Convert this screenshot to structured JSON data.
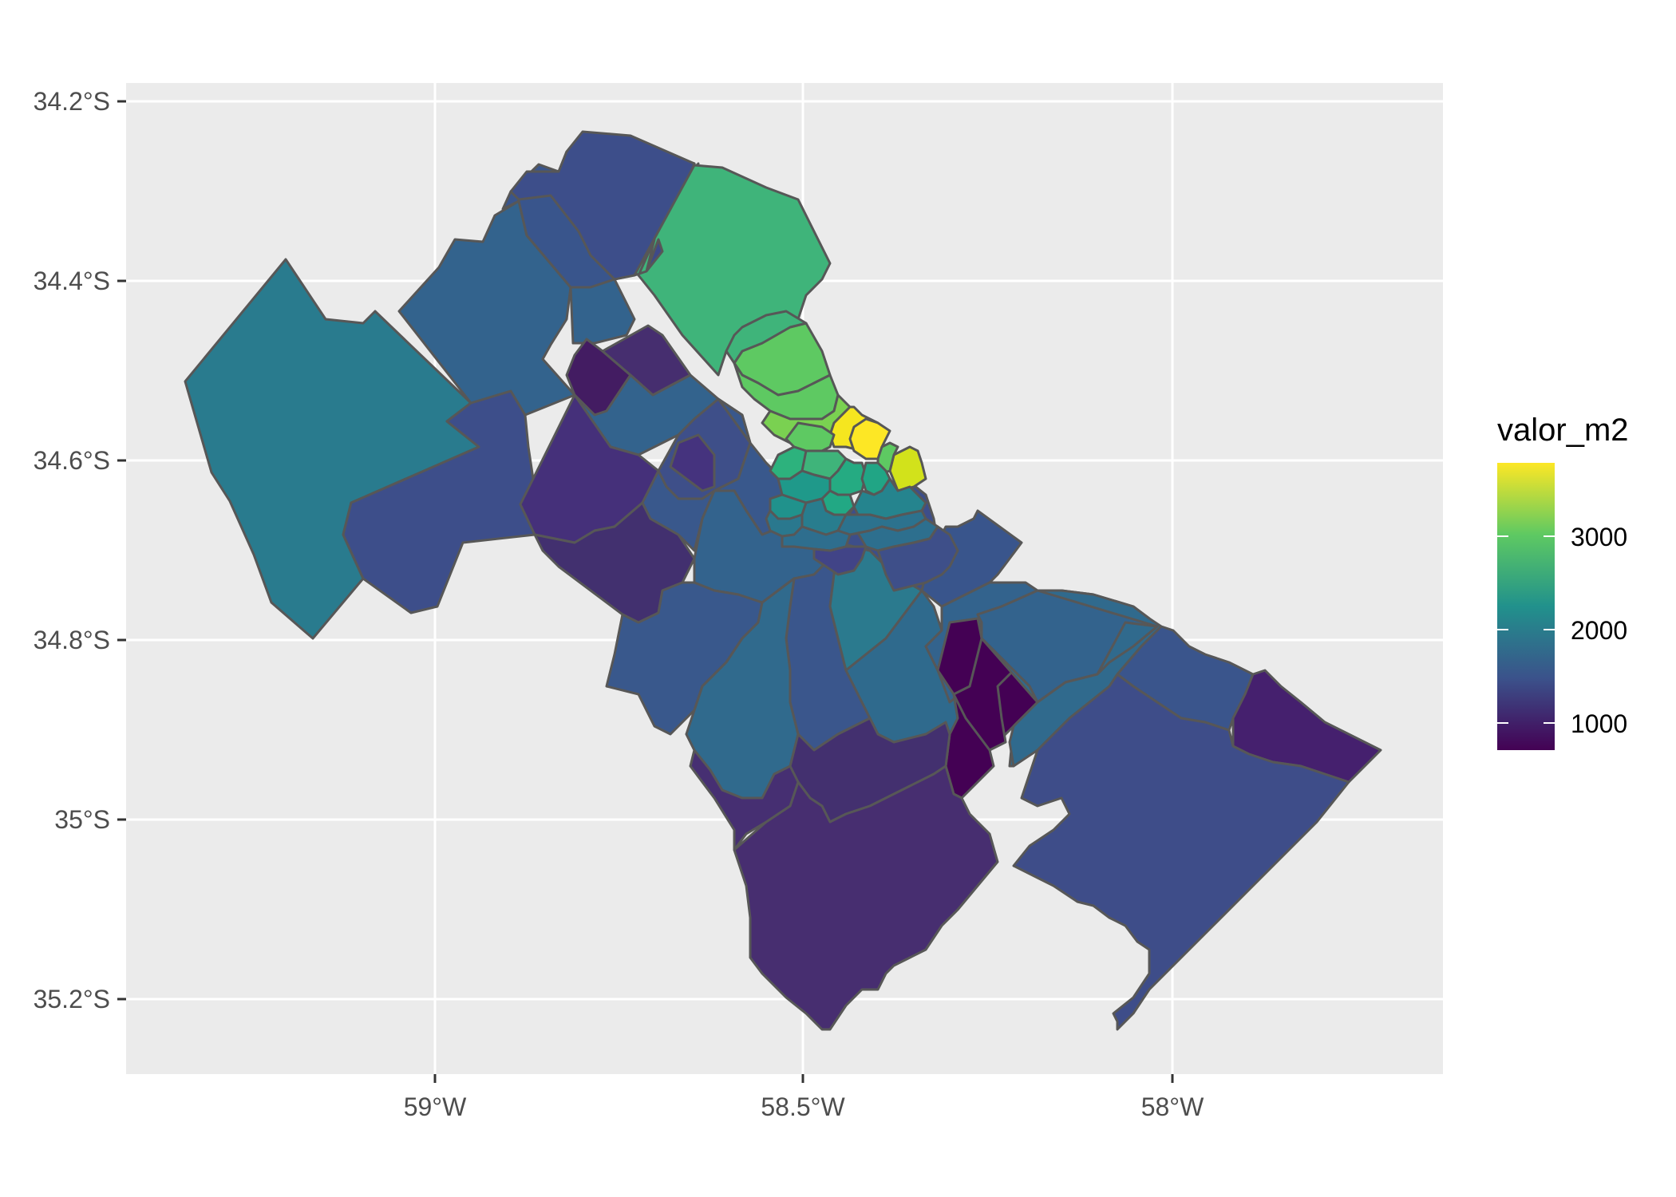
{
  "map": {
    "x_axis": {
      "ticks": [
        "59°W",
        "58.5°W",
        "58°W"
      ]
    },
    "y_axis": {
      "ticks": [
        "34.2°S",
        "34.4°S",
        "34.6°S",
        "34.8°S",
        "35°S",
        "35.2°S"
      ]
    },
    "legend": {
      "title": "valor_m2",
      "labels": [
        "3000",
        "2000",
        "1000"
      ],
      "colors": [
        "#fde725",
        "#5ec962",
        "#21918c",
        "#3b528b",
        "#440154"
      ]
    },
    "panel_background": "#ebebeb",
    "grid_color": "#ffffff",
    "border_color": "#575757"
  }
}
